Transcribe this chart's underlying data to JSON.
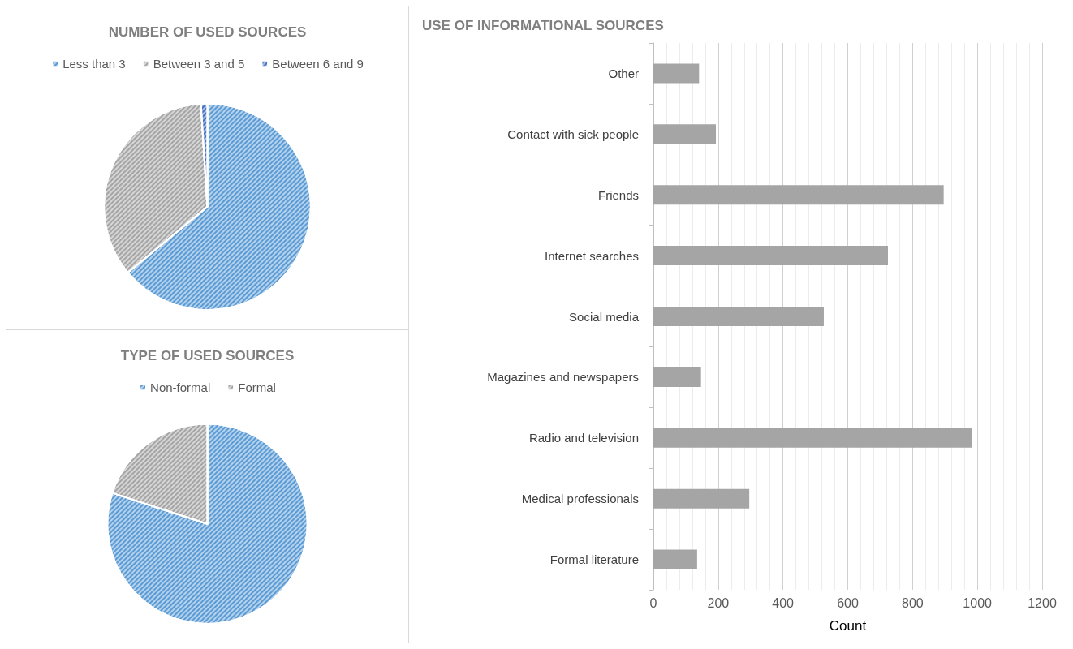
{
  "chart_data": [
    {
      "type": "pie",
      "title": "NUMBER OF USED SOURCES",
      "categories": [
        "Less than 3",
        "Between 3 and 5",
        "Between 6 and 9"
      ],
      "values": [
        64,
        35,
        1
      ],
      "colors": [
        "#5b9bd5",
        "#a5a5a5",
        "#4472c4"
      ],
      "legend": "top"
    },
    {
      "type": "pie",
      "title": "TYPE OF USED SOURCES",
      "categories": [
        "Non-formal",
        "Formal"
      ],
      "values": [
        80,
        20
      ],
      "colors": [
        "#5b9bd5",
        "#a5a5a5"
      ],
      "legend": "top"
    },
    {
      "type": "bar",
      "orientation": "horizontal",
      "title": "USE OF INFORMATIONAL SOURCES",
      "xlabel": "Count",
      "categories": [
        "Other",
        "Contact with sick people",
        "Friends",
        "Internet searches",
        "Social media",
        "Magazines and newspapers",
        "Radio and television",
        "Medical professionals",
        "Formal literature"
      ],
      "values": [
        141,
        193,
        896,
        724,
        526,
        147,
        984,
        296,
        135
      ],
      "color": "#a5a5a5",
      "xlim": [
        0,
        1200
      ],
      "xticks": [
        0,
        200,
        400,
        600,
        800,
        1000,
        1200
      ],
      "grid": "x",
      "legend": false
    }
  ]
}
